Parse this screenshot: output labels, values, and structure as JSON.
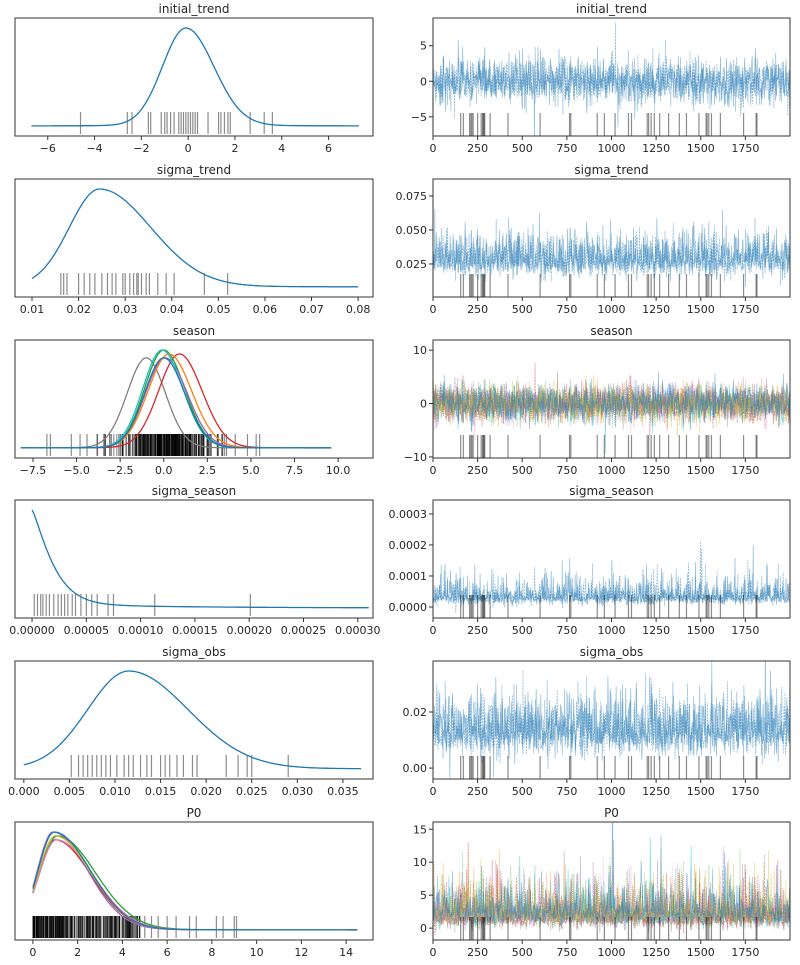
{
  "chart_data": {
    "type": "trace",
    "colors": {
      "primary": "#1f77b4",
      "rug": "#000000",
      "season_extra": [
        "#7f7f7f",
        "#d62728",
        "#2ca02c",
        "#9467bd",
        "#17becf",
        "#ff7f0e",
        "#e377c2",
        "#bcbd22"
      ]
    },
    "divergence_draws": [
      155,
      170,
      205,
      212,
      218,
      225,
      250,
      270,
      278,
      282,
      286,
      290,
      320,
      420,
      600,
      765,
      772,
      920,
      960,
      1020,
      1095,
      1112,
      1200,
      1208,
      1222,
      1240,
      1270,
      1320,
      1380,
      1420,
      1490,
      1530,
      1536,
      1545,
      1560,
      1610,
      1740,
      1810,
      1815
    ],
    "draws": 2000,
    "panels": [
      {
        "title": "initial_trend",
        "kde": {
          "xlim": [
            -7.4,
            7.9
          ],
          "range": [
            -6.7,
            7.3
          ],
          "curves": [
            {
              "mode": -0.1,
              "sd_left": 1.0,
              "sd_right": 1.2
            }
          ]
        },
        "kde_xticks": [
          -6,
          -4,
          -2,
          0,
          2,
          4,
          6
        ],
        "kde_xticklabels": [
          "−6",
          "−4",
          "−2",
          "0",
          "2",
          "4",
          "6"
        ],
        "rug": [
          -4.6,
          -2.6,
          -2.4,
          -1.7,
          -1.6,
          -1.15,
          -1.0,
          -0.9,
          -0.75,
          -0.6,
          -0.4,
          -0.3,
          -0.2,
          -0.1,
          0,
          0.1,
          0.2,
          0.3,
          0.4,
          0.85,
          1.3,
          1.4,
          1.55,
          1.7,
          1.8,
          2.65,
          3.25,
          3.6
        ],
        "trace": {
          "ylim": [
            -7.7,
            8.9
          ],
          "center": 0,
          "sd": 1.6,
          "skew": 0,
          "yticks": [
            -5,
            0,
            5
          ],
          "yticklabels": [
            "−5",
            "0",
            "5"
          ]
        }
      },
      {
        "title": "sigma_trend",
        "kde": {
          "xlim": [
            0.00635,
            0.0832
          ],
          "range": [
            0.01,
            0.08
          ],
          "curves": [
            {
              "mode": 0.0245,
              "sd_left": 0.0065,
              "sd_right": 0.011
            }
          ]
        },
        "kde_xticks": [
          0.01,
          0.02,
          0.03,
          0.04,
          0.05,
          0.06,
          0.07,
          0.08
        ],
        "kde_xticklabels": [
          "0.01",
          "0.02",
          "0.03",
          "0.04",
          "0.05",
          "0.06",
          "0.07",
          "0.08"
        ],
        "rug": [
          0.0162,
          0.0168,
          0.0175,
          0.02,
          0.0212,
          0.0224,
          0.0235,
          0.025,
          0.0262,
          0.0272,
          0.028,
          0.0295,
          0.03,
          0.031,
          0.0318,
          0.0325,
          0.0328,
          0.0335,
          0.0345,
          0.0352,
          0.037,
          0.0388,
          0.0405,
          0.047,
          0.052
        ],
        "trace": {
          "ylim": [
            0.0007,
            0.0875
          ],
          "center": 0.028,
          "sd": 0.008,
          "skew": 1,
          "yticks": [
            0.025,
            0.05,
            0.075
          ],
          "yticklabels": [
            "0.025",
            "0.050",
            "0.075"
          ]
        }
      },
      {
        "title": "season",
        "kde": {
          "xlim": [
            -8.53,
            12.0
          ],
          "range": [
            -8.2,
            9.6
          ],
          "curves": [
            {
              "mode": -1.0,
              "sd_left": 1.1,
              "sd_right": 1.1,
              "color": "#7f7f7f"
            },
            {
              "mode": 0.9,
              "sd_left": 1.2,
              "sd_right": 1.3,
              "color": "#d62728"
            },
            {
              "mode": 0.0,
              "sd_left": 1.1,
              "sd_right": 1.2,
              "color": "#2ca02c"
            },
            {
              "mode": 0.1,
              "sd_left": 1.15,
              "sd_right": 1.25,
              "color": "#9467bd"
            },
            {
              "mode": 0.3,
              "sd_left": 1.2,
              "sd_right": 1.3,
              "color": "#ff7f0e"
            },
            {
              "mode": -0.1,
              "sd_left": 1.1,
              "sd_right": 1.2,
              "color": "#17becf"
            },
            {
              "mode": 0.0,
              "sd_left": 1.1,
              "sd_right": 1.2,
              "color": "#1f77b4"
            }
          ]
        },
        "kde_xticks": [
          -7.5,
          -5,
          -2.5,
          0,
          2.5,
          5,
          7.5,
          10
        ],
        "kde_xticklabels": [
          "−7.5",
          "−5.0",
          "−2.5",
          "0.0",
          "2.5",
          "5.0",
          "7.5",
          "10.0"
        ],
        "rug_dense": [
          -4.5,
          4.5
        ],
        "rug": [
          -6.7,
          -6.5,
          -5.3,
          -4.8,
          -4.4,
          -3.8,
          -3.4,
          -3.0,
          3.1,
          3.6,
          4.1,
          4.8,
          5.3,
          5.5
        ],
        "trace": {
          "ylim": [
            -10.2,
            11.9
          ],
          "center": 0,
          "sd": 1.7,
          "skew": 0,
          "multi": true,
          "yticks": [
            -10,
            0,
            10
          ],
          "yticklabels": [
            "−10",
            "0",
            "10"
          ]
        }
      },
      {
        "title": "sigma_season",
        "kde": {
          "xlim": [
            -1.57e-05,
            0.000314
          ],
          "range": [
            0,
            0.00031
          ],
          "curves": [
            {
              "decay": 2.2e-05
            }
          ]
        },
        "kde_xticks": [
          0,
          5e-05,
          0.0001,
          0.00015,
          0.0002,
          0.00025,
          0.0003
        ],
        "kde_xticklabels": [
          "0.00000",
          "0.00005",
          "0.00010",
          "0.00015",
          "0.00020",
          "0.00025",
          "0.00030"
        ],
        "rug": [
          2e-06,
          5e-06,
          8e-06,
          1e-05,
          1.3e-05,
          1.6e-05,
          2e-05,
          2.4e-05,
          2.7e-05,
          3e-05,
          3.3e-05,
          3.7e-05,
          4e-05,
          4.5e-05,
          5e-05,
          5.5e-05,
          6e-05,
          7e-05,
          7.5e-05,
          0.000113,
          0.000201
        ],
        "trace": {
          "ylim": [
            -3.55e-05,
            0.000345
          ],
          "center": 3e-05,
          "sd": 2e-05,
          "skew": 2,
          "yticks": [
            0,
            0.0001,
            0.0002,
            0.0003
          ],
          "yticklabels": [
            "0.0000",
            "0.0001",
            "0.0002",
            "0.0003"
          ]
        }
      },
      {
        "title": "sigma_obs",
        "kde": {
          "xlim": [
            -0.00097,
            0.0383
          ],
          "range": [
            0,
            0.037
          ],
          "curves": [
            {
              "mode": 0.0115,
              "sd_left": 0.0045,
              "sd_right": 0.0065
            }
          ]
        },
        "kde_xticks": [
          0,
          0.005,
          0.01,
          0.015,
          0.02,
          0.025,
          0.03,
          0.035
        ],
        "kde_xticklabels": [
          "0.000",
          "0.005",
          "0.010",
          "0.015",
          "0.020",
          "0.025",
          "0.030",
          "0.035"
        ],
        "rug": [
          0.0052,
          0.006,
          0.0065,
          0.007,
          0.0075,
          0.008,
          0.0085,
          0.009,
          0.0095,
          0.0102,
          0.011,
          0.0115,
          0.012,
          0.0128,
          0.0135,
          0.014,
          0.015,
          0.0155,
          0.016,
          0.0168,
          0.0175,
          0.0185,
          0.019,
          0.0222,
          0.0235,
          0.0245,
          0.025,
          0.029
        ],
        "trace": {
          "ylim": [
            -0.0039,
            0.0382
          ],
          "center": 0.013,
          "sd": 0.0055,
          "skew": 1,
          "yticks": [
            0,
            0.02
          ],
          "yticklabels": [
            "0.00",
            "0.02"
          ]
        }
      },
      {
        "title": "P0",
        "kde": {
          "xlim": [
            -0.8,
            15.2
          ],
          "range": [
            0,
            14.5
          ],
          "curves": [
            {
              "mode": 1.0,
              "sd_left": 0.75,
              "sd_right": 1.6,
              "color": "#d62728"
            },
            {
              "mode": 1.1,
              "sd_left": 0.8,
              "sd_right": 1.7,
              "color": "#2ca02c"
            },
            {
              "mode": 0.9,
              "sd_left": 0.7,
              "sd_right": 1.55,
              "color": "#9467bd"
            },
            {
              "mode": 1.05,
              "sd_left": 0.78,
              "sd_right": 1.65,
              "color": "#e377c2"
            },
            {
              "mode": 1.0,
              "sd_left": 0.75,
              "sd_right": 1.6,
              "color": "#bcbd22"
            },
            {
              "mode": 0.95,
              "sd_left": 0.72,
              "sd_right": 1.62,
              "color": "#1f77b4"
            }
          ]
        },
        "kde_xticks": [
          0,
          2,
          4,
          6,
          8,
          10,
          12,
          14
        ],
        "kde_xticklabels": [
          "0",
          "2",
          "4",
          "6",
          "8",
          "10",
          "12",
          "14"
        ],
        "rug_dense": [
          0,
          4.8
        ],
        "rug": [
          5.0,
          5.3,
          5.6,
          6.0,
          6.4,
          7.0,
          7.3,
          8.2,
          8.5,
          9.0,
          9.1
        ],
        "trace": {
          "ylim": [
            -1.8,
            16.1
          ],
          "center": 1.8,
          "sd": 1.3,
          "skew": 2,
          "multi": true,
          "yticks": [
            0,
            5,
            10,
            15
          ],
          "yticklabels": [
            "0",
            "5",
            "10",
            "15"
          ]
        }
      }
    ],
    "trace_xticks": [
      0,
      250,
      500,
      750,
      1000,
      1250,
      1500,
      1750
    ],
    "trace_xlim": [
      0,
      2000
    ]
  }
}
